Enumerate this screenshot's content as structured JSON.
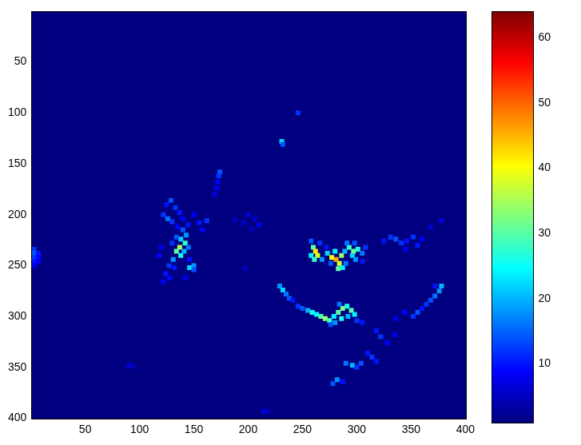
{
  "chart_data": {
    "type": "heatmap",
    "xlim": [
      0.5,
      400.5
    ],
    "ylim": [
      0.5,
      400.5
    ],
    "xticks": [
      50,
      100,
      150,
      200,
      250,
      300,
      350,
      400
    ],
    "yticks": [
      50,
      100,
      150,
      200,
      250,
      300,
      350,
      400
    ],
    "grid": false,
    "cell_size": 4,
    "colorbar": {
      "range": [
        1,
        64
      ],
      "ticks": [
        10,
        20,
        30,
        40,
        50,
        60
      ]
    },
    "cells": [
      [
        3,
        234,
        12
      ],
      [
        3,
        238,
        14
      ],
      [
        7,
        238,
        10
      ],
      [
        3,
        242,
        12
      ],
      [
        7,
        242,
        9
      ],
      [
        3,
        246,
        10
      ],
      [
        7,
        246,
        8
      ],
      [
        3,
        250,
        8
      ],
      [
        246,
        100,
        12
      ],
      [
        231,
        128,
        22
      ],
      [
        232,
        131,
        14
      ],
      [
        174,
        158,
        14
      ],
      [
        173,
        162,
        12
      ],
      [
        172,
        168,
        9
      ],
      [
        171,
        174,
        8
      ],
      [
        169,
        180,
        7
      ],
      [
        125,
        190,
        10
      ],
      [
        129,
        186,
        14
      ],
      [
        133,
        193,
        12
      ],
      [
        137,
        198,
        10
      ],
      [
        122,
        200,
        12
      ],
      [
        126,
        204,
        16
      ],
      [
        130,
        207,
        12
      ],
      [
        135,
        212,
        9
      ],
      [
        140,
        204,
        8
      ],
      [
        145,
        210,
        10
      ],
      [
        150,
        200,
        8
      ],
      [
        155,
        208,
        10
      ],
      [
        162,
        206,
        12
      ],
      [
        158,
        215,
        9
      ],
      [
        140,
        215,
        14
      ],
      [
        143,
        220,
        18
      ],
      [
        138,
        224,
        22
      ],
      [
        142,
        228,
        28
      ],
      [
        137,
        232,
        35
      ],
      [
        134,
        236,
        30
      ],
      [
        138,
        240,
        26
      ],
      [
        141,
        236,
        20
      ],
      [
        145,
        232,
        16
      ],
      [
        131,
        244,
        18
      ],
      [
        127,
        250,
        12
      ],
      [
        132,
        252,
        10
      ],
      [
        146,
        252,
        22
      ],
      [
        150,
        250,
        18
      ],
      [
        150,
        254,
        14
      ],
      [
        124,
        258,
        10
      ],
      [
        128,
        262,
        9
      ],
      [
        122,
        266,
        8
      ],
      [
        134,
        222,
        14
      ],
      [
        130,
        228,
        12
      ],
      [
        146,
        244,
        10
      ],
      [
        142,
        262,
        8
      ],
      [
        118,
        240,
        9
      ],
      [
        120,
        232,
        8
      ],
      [
        200,
        200,
        7
      ],
      [
        206,
        204,
        6
      ],
      [
        196,
        208,
        6
      ],
      [
        210,
        210,
        8
      ],
      [
        203,
        214,
        5
      ],
      [
        188,
        205,
        5
      ],
      [
        197,
        253,
        5
      ],
      [
        260,
        232,
        30
      ],
      [
        262,
        236,
        42
      ],
      [
        264,
        240,
        38
      ],
      [
        258,
        240,
        24
      ],
      [
        261,
        244,
        28
      ],
      [
        258,
        226,
        14
      ],
      [
        266,
        228,
        12
      ],
      [
        268,
        244,
        18
      ],
      [
        273,
        238,
        22
      ],
      [
        277,
        242,
        40
      ],
      [
        281,
        244,
        46
      ],
      [
        284,
        248,
        38
      ],
      [
        286,
        240,
        34
      ],
      [
        280,
        236,
        24
      ],
      [
        289,
        236,
        20
      ],
      [
        293,
        232,
        28
      ],
      [
        297,
        236,
        32
      ],
      [
        301,
        234,
        26
      ],
      [
        296,
        240,
        22
      ],
      [
        299,
        244,
        18
      ],
      [
        305,
        238,
        16
      ],
      [
        308,
        232,
        12
      ],
      [
        291,
        228,
        16
      ],
      [
        298,
        228,
        14
      ],
      [
        287,
        252,
        24
      ],
      [
        283,
        253,
        30
      ],
      [
        290,
        248,
        16
      ],
      [
        276,
        248,
        14
      ],
      [
        272,
        232,
        10
      ],
      [
        305,
        246,
        10
      ],
      [
        229,
        270,
        18
      ],
      [
        232,
        274,
        22
      ],
      [
        235,
        278,
        16
      ],
      [
        238,
        282,
        14
      ],
      [
        241,
        284,
        10
      ],
      [
        246,
        290,
        12
      ],
      [
        250,
        292,
        14
      ],
      [
        255,
        294,
        20
      ],
      [
        259,
        296,
        26
      ],
      [
        263,
        298,
        24
      ],
      [
        267,
        300,
        30
      ],
      [
        271,
        302,
        34
      ],
      [
        275,
        304,
        28
      ],
      [
        279,
        300,
        24
      ],
      [
        283,
        296,
        30
      ],
      [
        287,
        292,
        32
      ],
      [
        291,
        290,
        26
      ],
      [
        295,
        294,
        30
      ],
      [
        298,
        298,
        24
      ],
      [
        292,
        300,
        20
      ],
      [
        286,
        302,
        26
      ],
      [
        280,
        306,
        18
      ],
      [
        276,
        308,
        14
      ],
      [
        300,
        304,
        12
      ],
      [
        305,
        306,
        10
      ],
      [
        284,
        288,
        16
      ],
      [
        325,
        226,
        10
      ],
      [
        331,
        222,
        12
      ],
      [
        336,
        224,
        14
      ],
      [
        341,
        228,
        12
      ],
      [
        346,
        226,
        10
      ],
      [
        352,
        222,
        12
      ],
      [
        356,
        230,
        10
      ],
      [
        360,
        224,
        8
      ],
      [
        345,
        234,
        8
      ],
      [
        368,
        212,
        6
      ],
      [
        378,
        206,
        7
      ],
      [
        378,
        270,
        20
      ],
      [
        376,
        275,
        18
      ],
      [
        372,
        280,
        16
      ],
      [
        368,
        284,
        14
      ],
      [
        364,
        288,
        12
      ],
      [
        360,
        292,
        10
      ],
      [
        356,
        296,
        14
      ],
      [
        352,
        300,
        12
      ],
      [
        372,
        270,
        10
      ],
      [
        336,
        302,
        8
      ],
      [
        344,
        296,
        9
      ],
      [
        318,
        314,
        10
      ],
      [
        322,
        320,
        12
      ],
      [
        328,
        326,
        9
      ],
      [
        310,
        336,
        10
      ],
      [
        314,
        340,
        12
      ],
      [
        318,
        344,
        10
      ],
      [
        304,
        346,
        14
      ],
      [
        296,
        348,
        20
      ],
      [
        290,
        346,
        16
      ],
      [
        300,
        350,
        12
      ],
      [
        282,
        362,
        18
      ],
      [
        278,
        366,
        14
      ],
      [
        287,
        364,
        10
      ],
      [
        335,
        318,
        8
      ],
      [
        90,
        348,
        6
      ],
      [
        94,
        349,
        5
      ],
      [
        214,
        393,
        6
      ],
      [
        218,
        393,
        5
      ]
    ]
  }
}
